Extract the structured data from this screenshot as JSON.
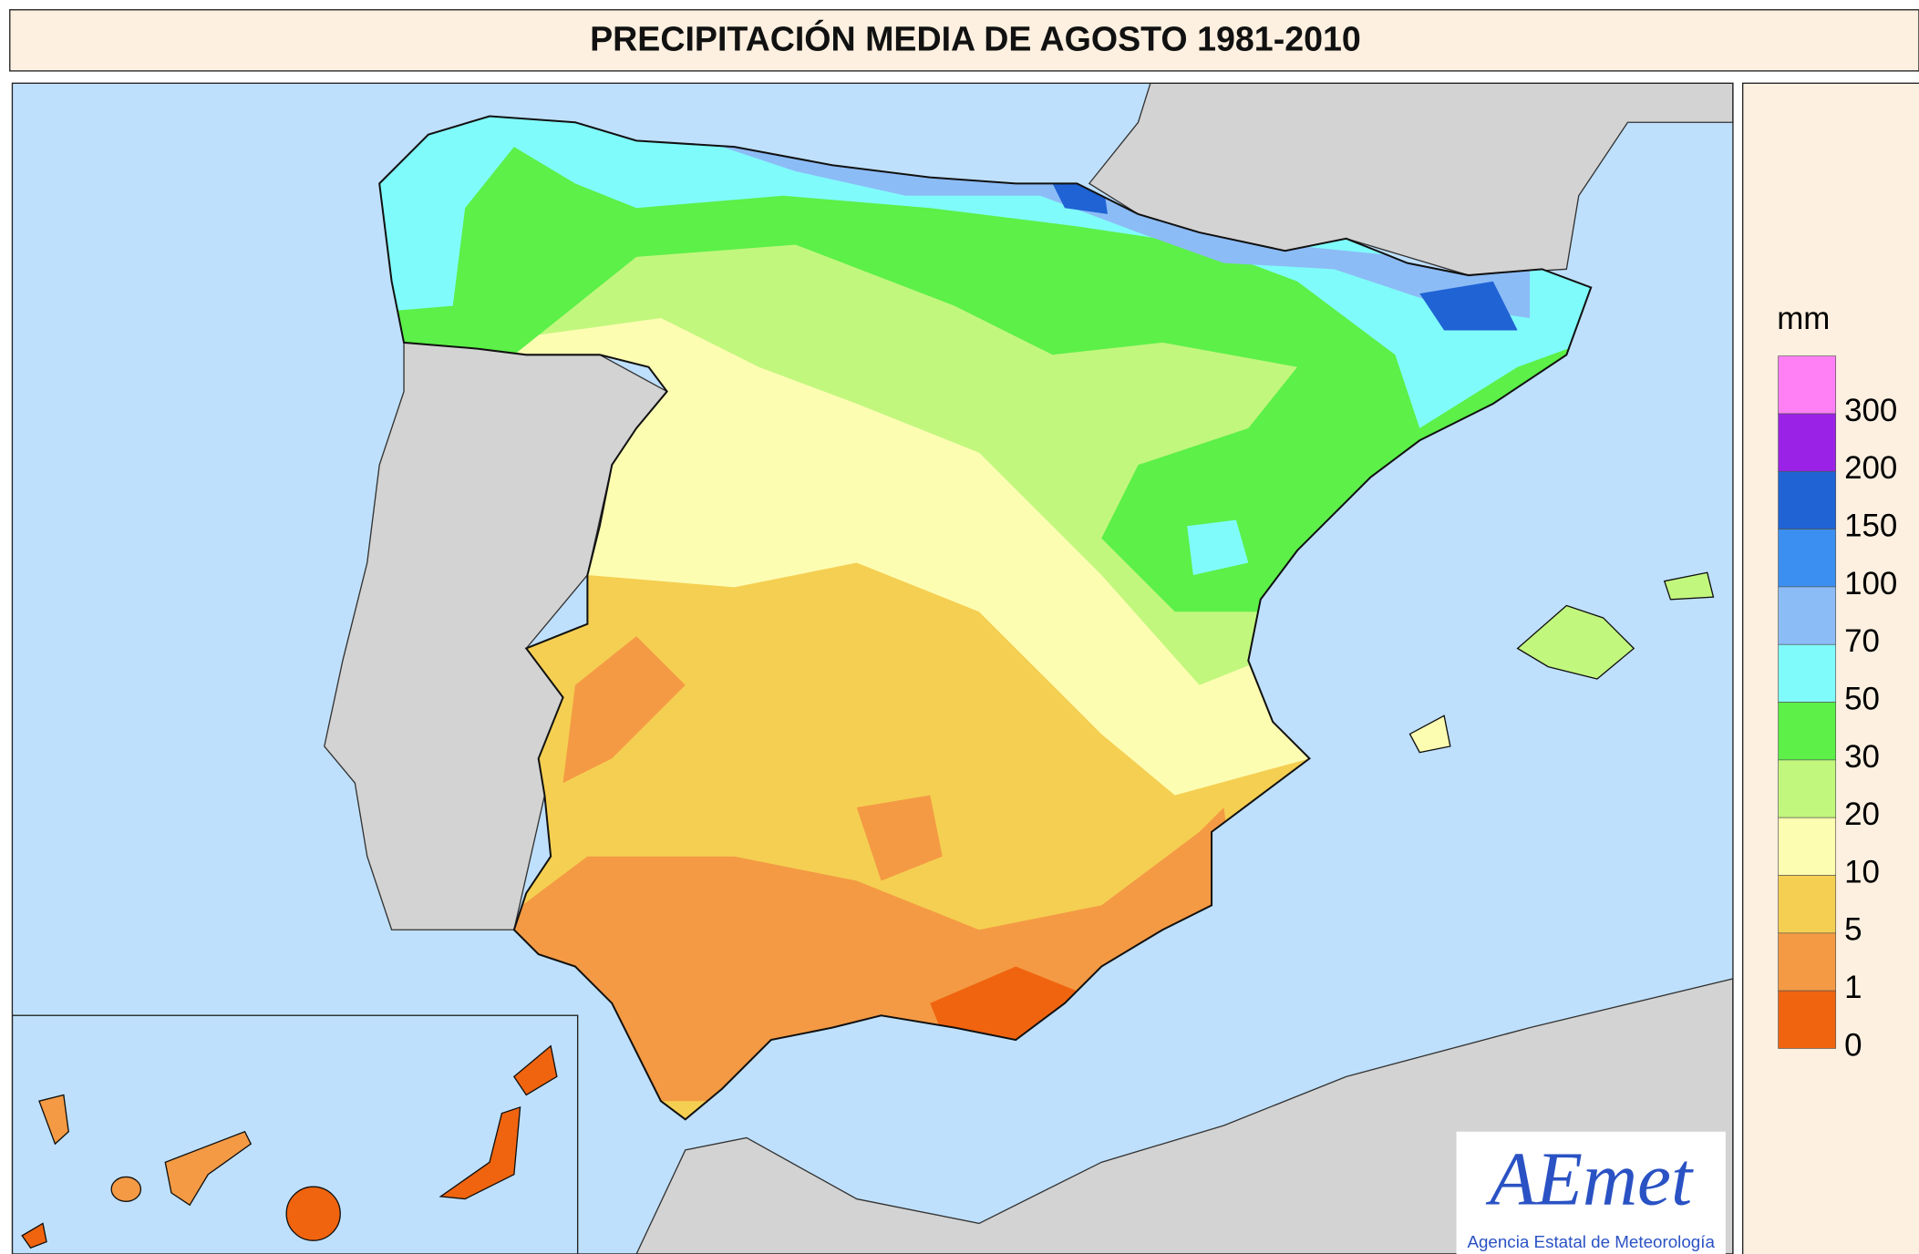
{
  "title": "PRECIPITACIÓN MEDIA DE AGOSTO 1981-2010",
  "legend": {
    "unit": "mm",
    "colors": [
      "#ff80f4",
      "#9a22e6",
      "#1f63d4",
      "#3b8ff0",
      "#8cbcf6",
      "#80fbfb",
      "#5cf048",
      "#c2f77e",
      "#fdfdb2",
      "#f5cf52",
      "#f49a44",
      "#f0640f"
    ],
    "ticks": [
      300,
      200,
      150,
      100,
      70,
      50,
      30,
      20,
      10,
      5,
      1,
      0
    ]
  },
  "logo": {
    "name": "AEmet",
    "subtitle": "Agencia Estatal de Meteorología"
  }
}
